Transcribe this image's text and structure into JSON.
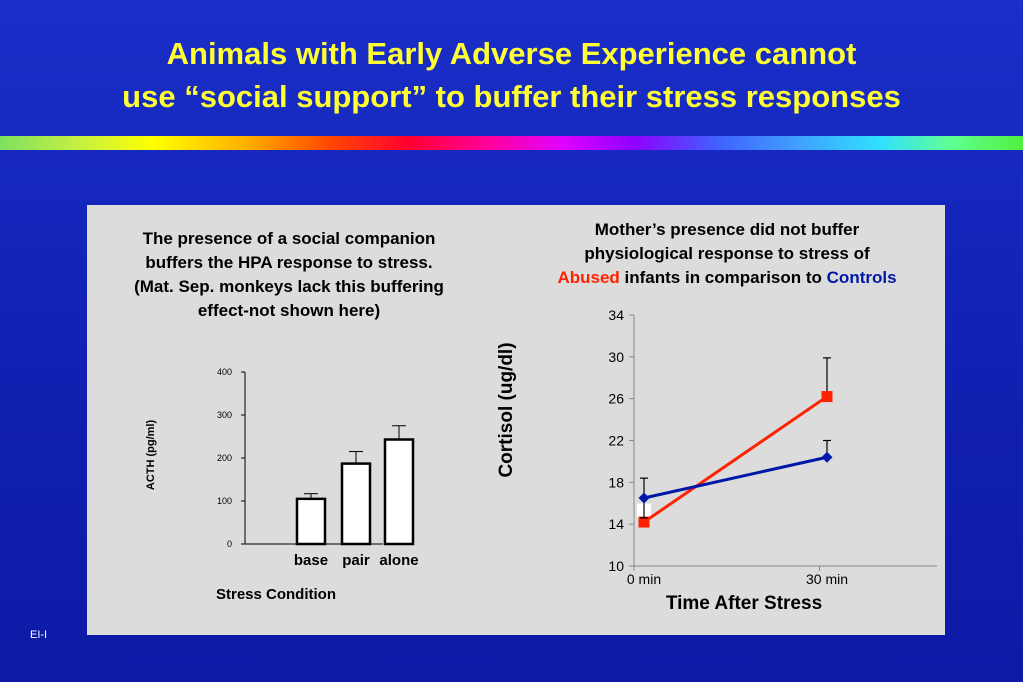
{
  "title": {
    "line1": "Animals with Early Adverse Experience cannot",
    "line2": "use “social support” to buffer their stress responses"
  },
  "left_note": {
    "line1": "The presence of a social companion",
    "line2": "buffers the HPA response to stress.",
    "line3": "(Mat. Sep. monkeys lack this buffering",
    "line4": "effect-not shown here)"
  },
  "right_note": {
    "line1": "Mother’s presence did not buffer",
    "line2": "physiological response to stress of",
    "abused": "Abused",
    "middle": " infants in comparison to ",
    "controls": "Controls"
  },
  "colors": {
    "abused": "#ff2200",
    "controls": "#0018a8",
    "title": "#ffff33"
  },
  "footer_code": "EI-I",
  "chart_data": [
    {
      "type": "bar",
      "categories": [
        "base",
        "pair",
        "alone"
      ],
      "values": [
        105,
        187,
        243
      ],
      "errors": [
        12,
        28,
        32
      ],
      "bar_fills": [
        "#ffffff",
        "#ffffff",
        "#ffffff"
      ],
      "xlabel": "Stress Condition",
      "ylabel": "ACTH (pg/ml)",
      "ylim": [
        0,
        400
      ],
      "yticks": [
        0,
        100,
        200,
        300,
        400
      ]
    },
    {
      "type": "line",
      "x": [
        "0 min",
        "30 min"
      ],
      "xlabel": "Time After Stress",
      "ylabel": "Cortisol (ug/dl)",
      "ylim": [
        10,
        34
      ],
      "yticks": [
        10,
        14,
        18,
        22,
        26,
        30,
        34
      ],
      "series": [
        {
          "name": "Abused",
          "color": "#ff2200",
          "marker": "square",
          "values": [
            14.2,
            26.2
          ],
          "errors": [
            0,
            3.7
          ]
        },
        {
          "name": "Controls",
          "color": "#0018a8",
          "marker": "diamond",
          "values": [
            16.5,
            20.4
          ],
          "errors": [
            1.9,
            1.6
          ]
        }
      ]
    }
  ]
}
